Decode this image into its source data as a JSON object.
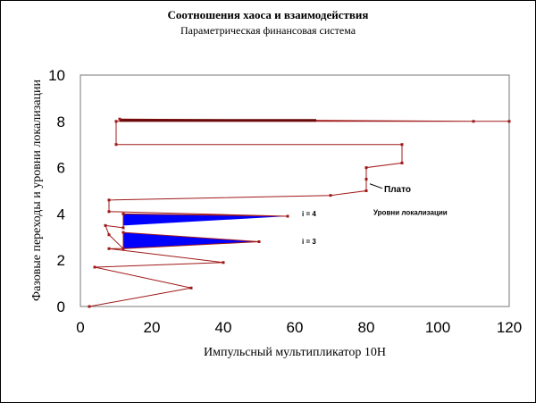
{
  "chart_data": {
    "type": "line",
    "title": "Соотношения хаоса и взаимодействия",
    "subtitle": "Параметрическая финансовая система",
    "xlabel": "Импульсный мультипликатор 10Н",
    "ylabel": "Фазовые переходы и уровни локализации",
    "xlim": [
      0,
      120
    ],
    "ylim": [
      0,
      10
    ],
    "x_ticks": [
      "0",
      "20",
      "40",
      "60",
      "80",
      "100",
      "120"
    ],
    "y_ticks": [
      "0",
      "2",
      "4",
      "6",
      "8",
      "10"
    ],
    "grid": false,
    "legend": "none",
    "colors": {
      "line": "#a01818",
      "fill": "#0000ff"
    },
    "series": [
      {
        "points": [
          [
            2.5,
            0.0
          ],
          [
            31,
            0.8
          ],
          [
            4,
            1.7
          ],
          [
            40,
            1.9
          ],
          [
            8,
            2.5
          ],
          [
            12,
            2.5
          ],
          [
            12,
            3.2
          ],
          [
            50,
            2.8
          ],
          [
            12,
            2.5
          ],
          [
            8,
            3.1
          ],
          [
            7,
            3.5
          ],
          [
            12,
            3.4
          ],
          [
            12,
            4.0
          ],
          [
            58,
            3.9
          ],
          [
            8,
            4.1
          ],
          [
            8,
            4.6
          ],
          [
            70,
            4.8
          ],
          [
            80,
            5.0
          ],
          [
            80,
            5.5
          ],
          [
            80,
            6.0
          ],
          [
            90,
            6.2
          ],
          [
            90,
            7.0
          ],
          [
            10,
            7.0
          ],
          [
            10,
            8.0
          ],
          [
            120,
            8.0
          ],
          [
            110,
            8.0
          ],
          [
            11,
            8.1
          ]
        ]
      }
    ],
    "filled_regions": [
      {
        "x_start": 12,
        "x_end": 50,
        "y_top": 3.2,
        "y_bottom": 2.5,
        "y_tip": 2.8
      },
      {
        "x_start": 12,
        "x_end": 58,
        "y_top": 4.0,
        "y_bottom": 3.5,
        "y_tip": 3.9
      }
    ],
    "dark_band": {
      "x_start": 11,
      "x_end": 66,
      "y": 8.0
    },
    "annotations": [
      {
        "text": "Плато",
        "x": 85,
        "y": 4.95,
        "arrow_to": [
          81,
          5.3
        ]
      },
      {
        "text": "Уровни локализации",
        "x": 82,
        "y": 3.95
      },
      {
        "text": "i = 4",
        "x": 62,
        "y": 3.9
      },
      {
        "text": "i = 3",
        "x": 62,
        "y": 2.7
      }
    ]
  }
}
